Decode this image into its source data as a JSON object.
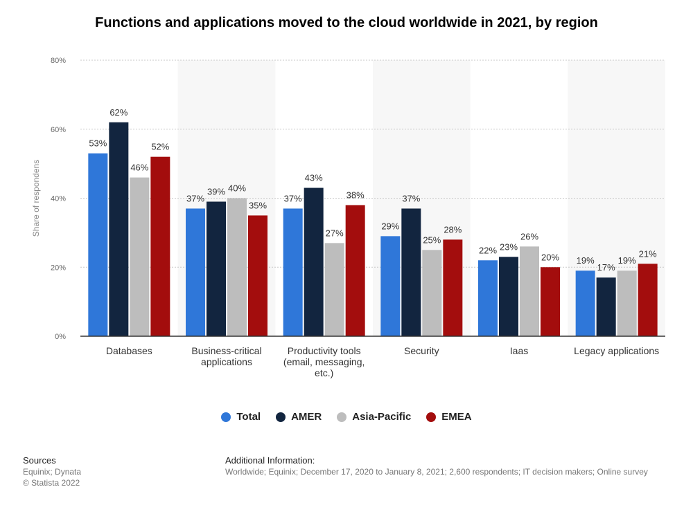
{
  "chart_data": {
    "type": "bar",
    "title": "Functions and applications moved to the cloud worldwide in 2021, by region",
    "ylabel": "Share of respondens",
    "ylim": [
      0,
      80
    ],
    "yticks": [
      "0%",
      "20%",
      "40%",
      "60%",
      "80%"
    ],
    "ytick_values": [
      0,
      20,
      40,
      60,
      80
    ],
    "categories": [
      [
        "Databases"
      ],
      [
        "Business-critical",
        "applications"
      ],
      [
        "Productivity tools",
        "(email, messaging,",
        "etc.)"
      ],
      [
        "Security"
      ],
      [
        "Iaas"
      ],
      [
        "Legacy applications"
      ]
    ],
    "series": [
      {
        "name": "Total",
        "color": "#2f77d9",
        "values": [
          53,
          37,
          37,
          29,
          22,
          19
        ]
      },
      {
        "name": "AMER",
        "color": "#12253f",
        "values": [
          62,
          39,
          43,
          37,
          23,
          17
        ]
      },
      {
        "name": "Asia-Pacific",
        "color": "#bdbdbd",
        "values": [
          46,
          40,
          27,
          25,
          26,
          19
        ]
      },
      {
        "name": "EMEA",
        "color": "#a30d0d",
        "values": [
          52,
          35,
          38,
          28,
          20,
          21
        ]
      }
    ],
    "value_suffix": "%",
    "grid": true,
    "legend_position": "bottom"
  },
  "sources": {
    "heading": "Sources",
    "lines": [
      "Equinix; Dynata",
      "© Statista 2022"
    ]
  },
  "additional_info": {
    "heading": "Additional Information:",
    "text": "Worldwide; Equinix; December 17, 2020 to January 8, 2021; 2,600 respondents; IT decision makers; Online survey"
  }
}
